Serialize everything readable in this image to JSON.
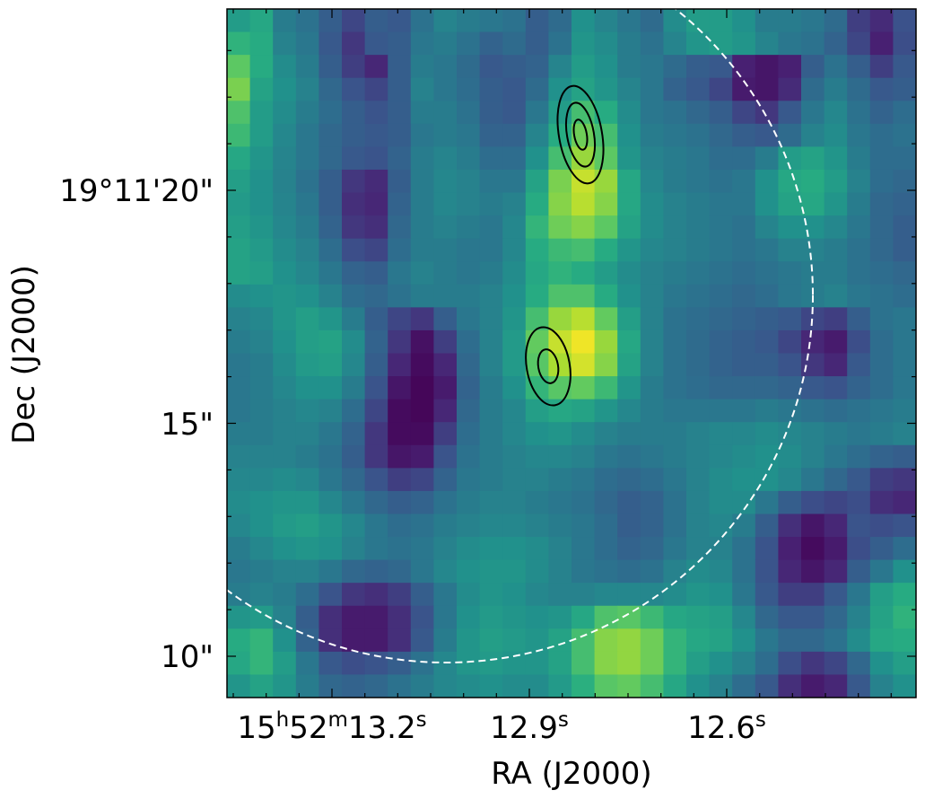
{
  "chart_data": {
    "type": "heatmap",
    "title": "",
    "xlabel": "RA (J2000)",
    "ylabel": "Dec (J2000)",
    "colormap": "viridis",
    "colors": {
      "overlay_circle": "#ffffff",
      "contours": "#000000",
      "frame": "#000000"
    },
    "grid": false,
    "x_ticks": [
      {
        "label_parts": [
          {
            "t": "15"
          },
          {
            "t": "h",
            "sup": true
          },
          {
            "t": "52"
          },
          {
            "t": "m",
            "sup": true
          },
          {
            "t": "13.2"
          },
          {
            "t": "s",
            "sup": true
          }
        ],
        "value": "15h52m13.2s"
      },
      {
        "label_parts": [
          {
            "t": "12.9"
          },
          {
            "t": "s",
            "sup": true
          }
        ],
        "value": "15h52m12.9s"
      },
      {
        "label_parts": [
          {
            "t": "12.6"
          },
          {
            "t": "s",
            "sup": true
          }
        ],
        "value": "15h52m12.6s"
      }
    ],
    "y_ticks": [
      {
        "label": "19°11'20\"",
        "value": "19°11'20\""
      },
      {
        "label": "15\"",
        "value": "19°11'15\""
      },
      {
        "label": "10\"",
        "value": "19°11'10\""
      }
    ],
    "grid_shape": [
      30,
      30
    ],
    "grid_values": [
      [
        0.55,
        0.6,
        0.42,
        0.38,
        0.3,
        0.22,
        0.3,
        0.28,
        0.38,
        0.45,
        0.42,
        0.4,
        0.38,
        0.3,
        0.35,
        0.5,
        0.45,
        0.4,
        0.35,
        0.48,
        0.55,
        0.55,
        0.5,
        0.42,
        0.42,
        0.4,
        0.35,
        0.2,
        0.15,
        0.25
      ],
      [
        0.65,
        0.62,
        0.44,
        0.4,
        0.28,
        0.18,
        0.28,
        0.3,
        0.4,
        0.42,
        0.38,
        0.32,
        0.35,
        0.3,
        0.38,
        0.52,
        0.48,
        0.42,
        0.38,
        0.45,
        0.52,
        0.55,
        0.52,
        0.45,
        0.4,
        0.38,
        0.32,
        0.22,
        0.12,
        0.24
      ],
      [
        0.75,
        0.62,
        0.48,
        0.42,
        0.3,
        0.2,
        0.14,
        0.3,
        0.42,
        0.4,
        0.35,
        0.28,
        0.3,
        0.32,
        0.45,
        0.55,
        0.5,
        0.42,
        0.4,
        0.35,
        0.3,
        0.28,
        0.12,
        0.08,
        0.12,
        0.3,
        0.38,
        0.3,
        0.2,
        0.28
      ],
      [
        0.8,
        0.58,
        0.5,
        0.44,
        0.34,
        0.26,
        0.22,
        0.3,
        0.44,
        0.4,
        0.36,
        0.3,
        0.28,
        0.35,
        0.5,
        0.58,
        0.52,
        0.45,
        0.4,
        0.32,
        0.28,
        0.22,
        0.1,
        0.08,
        0.15,
        0.35,
        0.42,
        0.35,
        0.28,
        0.3
      ],
      [
        0.72,
        0.55,
        0.48,
        0.42,
        0.36,
        0.3,
        0.26,
        0.3,
        0.42,
        0.42,
        0.38,
        0.3,
        0.28,
        0.4,
        0.55,
        0.7,
        0.62,
        0.48,
        0.4,
        0.38,
        0.34,
        0.3,
        0.22,
        0.18,
        0.28,
        0.4,
        0.46,
        0.38,
        0.32,
        0.36
      ],
      [
        0.68,
        0.55,
        0.46,
        0.4,
        0.34,
        0.3,
        0.28,
        0.3,
        0.4,
        0.42,
        0.4,
        0.32,
        0.32,
        0.45,
        0.62,
        0.78,
        0.7,
        0.5,
        0.42,
        0.4,
        0.38,
        0.34,
        0.3,
        0.28,
        0.35,
        0.44,
        0.48,
        0.4,
        0.36,
        0.38
      ],
      [
        0.6,
        0.52,
        0.45,
        0.4,
        0.34,
        0.28,
        0.26,
        0.32,
        0.42,
        0.45,
        0.42,
        0.36,
        0.36,
        0.5,
        0.7,
        0.85,
        0.75,
        0.52,
        0.44,
        0.42,
        0.4,
        0.36,
        0.36,
        0.42,
        0.55,
        0.58,
        0.52,
        0.42,
        0.36,
        0.36
      ],
      [
        0.56,
        0.5,
        0.44,
        0.38,
        0.3,
        0.18,
        0.15,
        0.3,
        0.42,
        0.46,
        0.44,
        0.4,
        0.4,
        0.58,
        0.8,
        0.92,
        0.85,
        0.6,
        0.46,
        0.42,
        0.4,
        0.38,
        0.4,
        0.5,
        0.6,
        0.62,
        0.55,
        0.44,
        0.36,
        0.34
      ],
      [
        0.54,
        0.5,
        0.45,
        0.4,
        0.3,
        0.16,
        0.14,
        0.32,
        0.42,
        0.46,
        0.44,
        0.42,
        0.44,
        0.62,
        0.82,
        0.9,
        0.82,
        0.6,
        0.48,
        0.44,
        0.42,
        0.4,
        0.4,
        0.5,
        0.58,
        0.6,
        0.52,
        0.42,
        0.34,
        0.32
      ],
      [
        0.56,
        0.52,
        0.46,
        0.42,
        0.32,
        0.18,
        0.16,
        0.34,
        0.42,
        0.44,
        0.42,
        0.4,
        0.46,
        0.66,
        0.78,
        0.82,
        0.75,
        0.58,
        0.48,
        0.44,
        0.42,
        0.4,
        0.38,
        0.45,
        0.5,
        0.5,
        0.46,
        0.4,
        0.34,
        0.3
      ],
      [
        0.58,
        0.54,
        0.48,
        0.44,
        0.36,
        0.24,
        0.22,
        0.36,
        0.42,
        0.42,
        0.4,
        0.4,
        0.46,
        0.62,
        0.68,
        0.7,
        0.62,
        0.52,
        0.46,
        0.44,
        0.42,
        0.4,
        0.38,
        0.4,
        0.44,
        0.44,
        0.42,
        0.38,
        0.34,
        0.3
      ],
      [
        0.58,
        0.56,
        0.5,
        0.46,
        0.4,
        0.32,
        0.3,
        0.4,
        0.44,
        0.42,
        0.4,
        0.42,
        0.48,
        0.6,
        0.65,
        0.62,
        0.55,
        0.48,
        0.44,
        0.42,
        0.4,
        0.38,
        0.36,
        0.38,
        0.4,
        0.42,
        0.42,
        0.38,
        0.36,
        0.34
      ],
      [
        0.48,
        0.5,
        0.52,
        0.5,
        0.44,
        0.36,
        0.34,
        0.38,
        0.42,
        0.42,
        0.42,
        0.44,
        0.5,
        0.62,
        0.72,
        0.72,
        0.62,
        0.5,
        0.44,
        0.4,
        0.38,
        0.36,
        0.34,
        0.36,
        0.4,
        0.42,
        0.44,
        0.4,
        0.38,
        0.36
      ],
      [
        0.44,
        0.46,
        0.52,
        0.56,
        0.52,
        0.42,
        0.3,
        0.22,
        0.18,
        0.3,
        0.4,
        0.44,
        0.52,
        0.7,
        0.85,
        0.9,
        0.76,
        0.56,
        0.44,
        0.38,
        0.36,
        0.34,
        0.32,
        0.3,
        0.28,
        0.22,
        0.2,
        0.3,
        0.38,
        0.4
      ],
      [
        0.42,
        0.44,
        0.5,
        0.56,
        0.58,
        0.48,
        0.32,
        0.18,
        0.06,
        0.2,
        0.36,
        0.44,
        0.54,
        0.76,
        0.92,
        0.98,
        0.85,
        0.6,
        0.44,
        0.38,
        0.35,
        0.32,
        0.3,
        0.28,
        0.22,
        0.14,
        0.1,
        0.24,
        0.36,
        0.4
      ],
      [
        0.4,
        0.42,
        0.48,
        0.54,
        0.56,
        0.46,
        0.3,
        0.14,
        0.04,
        0.14,
        0.34,
        0.44,
        0.54,
        0.74,
        0.88,
        0.94,
        0.82,
        0.58,
        0.44,
        0.38,
        0.35,
        0.32,
        0.3,
        0.3,
        0.26,
        0.18,
        0.14,
        0.28,
        0.36,
        0.4
      ],
      [
        0.4,
        0.42,
        0.46,
        0.5,
        0.5,
        0.42,
        0.26,
        0.08,
        0.02,
        0.1,
        0.32,
        0.42,
        0.5,
        0.66,
        0.74,
        0.76,
        0.68,
        0.52,
        0.42,
        0.38,
        0.36,
        0.34,
        0.34,
        0.34,
        0.32,
        0.28,
        0.26,
        0.32,
        0.36,
        0.4
      ],
      [
        0.4,
        0.42,
        0.44,
        0.46,
        0.44,
        0.36,
        0.22,
        0.04,
        0.02,
        0.14,
        0.34,
        0.42,
        0.46,
        0.56,
        0.6,
        0.58,
        0.52,
        0.46,
        0.42,
        0.4,
        0.4,
        0.4,
        0.4,
        0.42,
        0.4,
        0.38,
        0.36,
        0.38,
        0.4,
        0.42
      ],
      [
        0.42,
        0.42,
        0.44,
        0.44,
        0.4,
        0.32,
        0.18,
        0.04,
        0.04,
        0.2,
        0.36,
        0.42,
        0.46,
        0.5,
        0.52,
        0.48,
        0.44,
        0.42,
        0.42,
        0.42,
        0.44,
        0.46,
        0.46,
        0.48,
        0.46,
        0.44,
        0.42,
        0.4,
        0.42,
        0.44
      ],
      [
        0.44,
        0.44,
        0.44,
        0.42,
        0.38,
        0.3,
        0.18,
        0.08,
        0.1,
        0.26,
        0.38,
        0.42,
        0.44,
        0.46,
        0.46,
        0.44,
        0.4,
        0.38,
        0.4,
        0.42,
        0.44,
        0.46,
        0.48,
        0.5,
        0.48,
        0.44,
        0.4,
        0.36,
        0.32,
        0.3
      ],
      [
        0.46,
        0.46,
        0.48,
        0.46,
        0.4,
        0.34,
        0.26,
        0.2,
        0.22,
        0.32,
        0.4,
        0.42,
        0.44,
        0.44,
        0.42,
        0.4,
        0.36,
        0.34,
        0.36,
        0.4,
        0.44,
        0.48,
        0.5,
        0.5,
        0.46,
        0.4,
        0.34,
        0.28,
        0.2,
        0.18
      ],
      [
        0.48,
        0.5,
        0.52,
        0.52,
        0.46,
        0.4,
        0.34,
        0.3,
        0.32,
        0.38,
        0.42,
        0.44,
        0.44,
        0.42,
        0.4,
        0.38,
        0.34,
        0.3,
        0.32,
        0.38,
        0.44,
        0.48,
        0.48,
        0.4,
        0.3,
        0.24,
        0.22,
        0.24,
        0.16,
        0.14
      ],
      [
        0.46,
        0.5,
        0.54,
        0.56,
        0.52,
        0.46,
        0.4,
        0.36,
        0.38,
        0.42,
        0.44,
        0.46,
        0.46,
        0.44,
        0.42,
        0.4,
        0.36,
        0.3,
        0.32,
        0.38,
        0.44,
        0.46,
        0.42,
        0.3,
        0.16,
        0.08,
        0.14,
        0.26,
        0.24,
        0.26
      ],
      [
        0.42,
        0.46,
        0.5,
        0.52,
        0.5,
        0.44,
        0.4,
        0.38,
        0.4,
        0.44,
        0.48,
        0.5,
        0.5,
        0.48,
        0.44,
        0.4,
        0.36,
        0.32,
        0.34,
        0.4,
        0.44,
        0.44,
        0.38,
        0.26,
        0.12,
        0.04,
        0.1,
        0.24,
        0.3,
        0.36
      ],
      [
        0.4,
        0.42,
        0.44,
        0.44,
        0.4,
        0.34,
        0.32,
        0.34,
        0.4,
        0.46,
        0.5,
        0.52,
        0.52,
        0.48,
        0.44,
        0.4,
        0.38,
        0.36,
        0.38,
        0.44,
        0.48,
        0.46,
        0.38,
        0.26,
        0.14,
        0.08,
        0.14,
        0.3,
        0.4,
        0.5
      ],
      [
        0.42,
        0.44,
        0.42,
        0.36,
        0.26,
        0.18,
        0.16,
        0.2,
        0.3,
        0.4,
        0.48,
        0.52,
        0.5,
        0.46,
        0.44,
        0.44,
        0.46,
        0.46,
        0.46,
        0.48,
        0.52,
        0.5,
        0.4,
        0.28,
        0.2,
        0.2,
        0.28,
        0.4,
        0.56,
        0.62
      ],
      [
        0.52,
        0.54,
        0.44,
        0.3,
        0.16,
        0.1,
        0.1,
        0.16,
        0.26,
        0.4,
        0.5,
        0.54,
        0.52,
        0.5,
        0.52,
        0.6,
        0.72,
        0.74,
        0.68,
        0.6,
        0.58,
        0.56,
        0.46,
        0.34,
        0.28,
        0.28,
        0.34,
        0.44,
        0.58,
        0.65
      ],
      [
        0.62,
        0.66,
        0.5,
        0.32,
        0.16,
        0.1,
        0.1,
        0.16,
        0.28,
        0.42,
        0.52,
        0.56,
        0.54,
        0.52,
        0.58,
        0.7,
        0.82,
        0.84,
        0.78,
        0.66,
        0.6,
        0.58,
        0.5,
        0.4,
        0.34,
        0.34,
        0.38,
        0.48,
        0.6,
        0.62
      ],
      [
        0.6,
        0.66,
        0.55,
        0.4,
        0.28,
        0.24,
        0.26,
        0.3,
        0.38,
        0.46,
        0.52,
        0.54,
        0.52,
        0.52,
        0.58,
        0.7,
        0.82,
        0.84,
        0.78,
        0.66,
        0.56,
        0.5,
        0.44,
        0.36,
        0.24,
        0.18,
        0.22,
        0.34,
        0.5,
        0.56
      ],
      [
        0.52,
        0.58,
        0.52,
        0.42,
        0.34,
        0.32,
        0.34,
        0.38,
        0.42,
        0.46,
        0.48,
        0.5,
        0.48,
        0.48,
        0.54,
        0.64,
        0.74,
        0.76,
        0.7,
        0.6,
        0.5,
        0.44,
        0.36,
        0.28,
        0.16,
        0.1,
        0.14,
        0.28,
        0.44,
        0.5
      ]
    ],
    "annotations": [
      "dashed beam circle",
      "contours around source at 12.85s, 19'21\"",
      "contours around source at 12.88s, 19'16\""
    ]
  }
}
